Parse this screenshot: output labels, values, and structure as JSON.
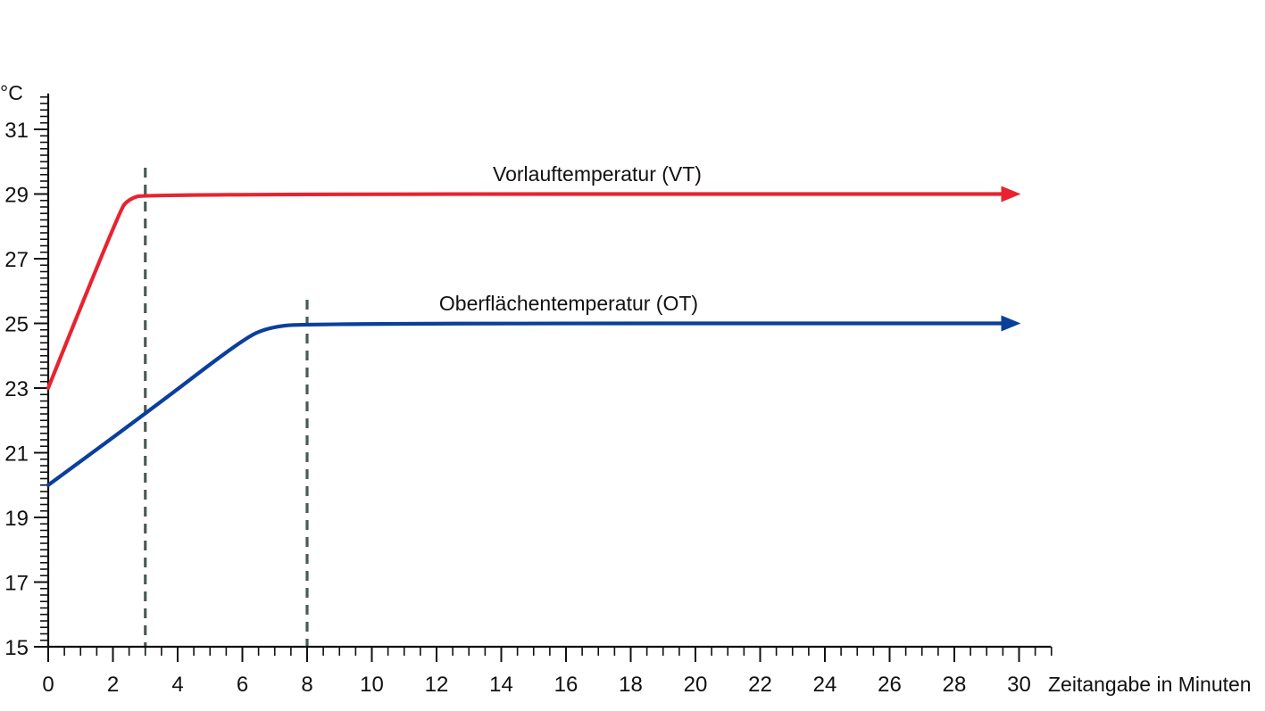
{
  "chart_data": {
    "type": "line",
    "ylabel": "°C",
    "xlabel": "Zeitangabe in Minuten",
    "xlim": [
      0,
      30
    ],
    "ylim": [
      15,
      32
    ],
    "x_ticks": [
      0,
      2,
      4,
      6,
      8,
      10,
      12,
      14,
      16,
      18,
      20,
      22,
      24,
      26,
      28,
      30
    ],
    "y_ticks": [
      15,
      17,
      19,
      21,
      23,
      25,
      27,
      29,
      31
    ],
    "x_minor_step": 0.5,
    "y_minor_step": 0.2,
    "grid": false,
    "series": [
      {
        "name": "Vorlauftemperatur (VT)",
        "color": "#e8232f",
        "arrow_end": true,
        "points": [
          [
            0,
            23
          ],
          [
            2.2,
            28.5
          ],
          [
            2.5,
            28.85
          ],
          [
            3,
            29
          ],
          [
            30,
            29
          ]
        ]
      },
      {
        "name": "Oberflächentemperatur (OT)",
        "color": "#0a3f9c",
        "arrow_end": true,
        "points": [
          [
            0,
            20
          ],
          [
            3,
            22.2
          ],
          [
            6,
            24.5
          ],
          [
            6.8,
            24.88
          ],
          [
            8,
            25
          ],
          [
            30,
            25
          ]
        ]
      }
    ],
    "vlines": [
      {
        "x": 3,
        "style": "dashed",
        "color": "#4b5a56"
      },
      {
        "x": 8,
        "style": "dashed",
        "color": "#4b5a56"
      }
    ]
  }
}
